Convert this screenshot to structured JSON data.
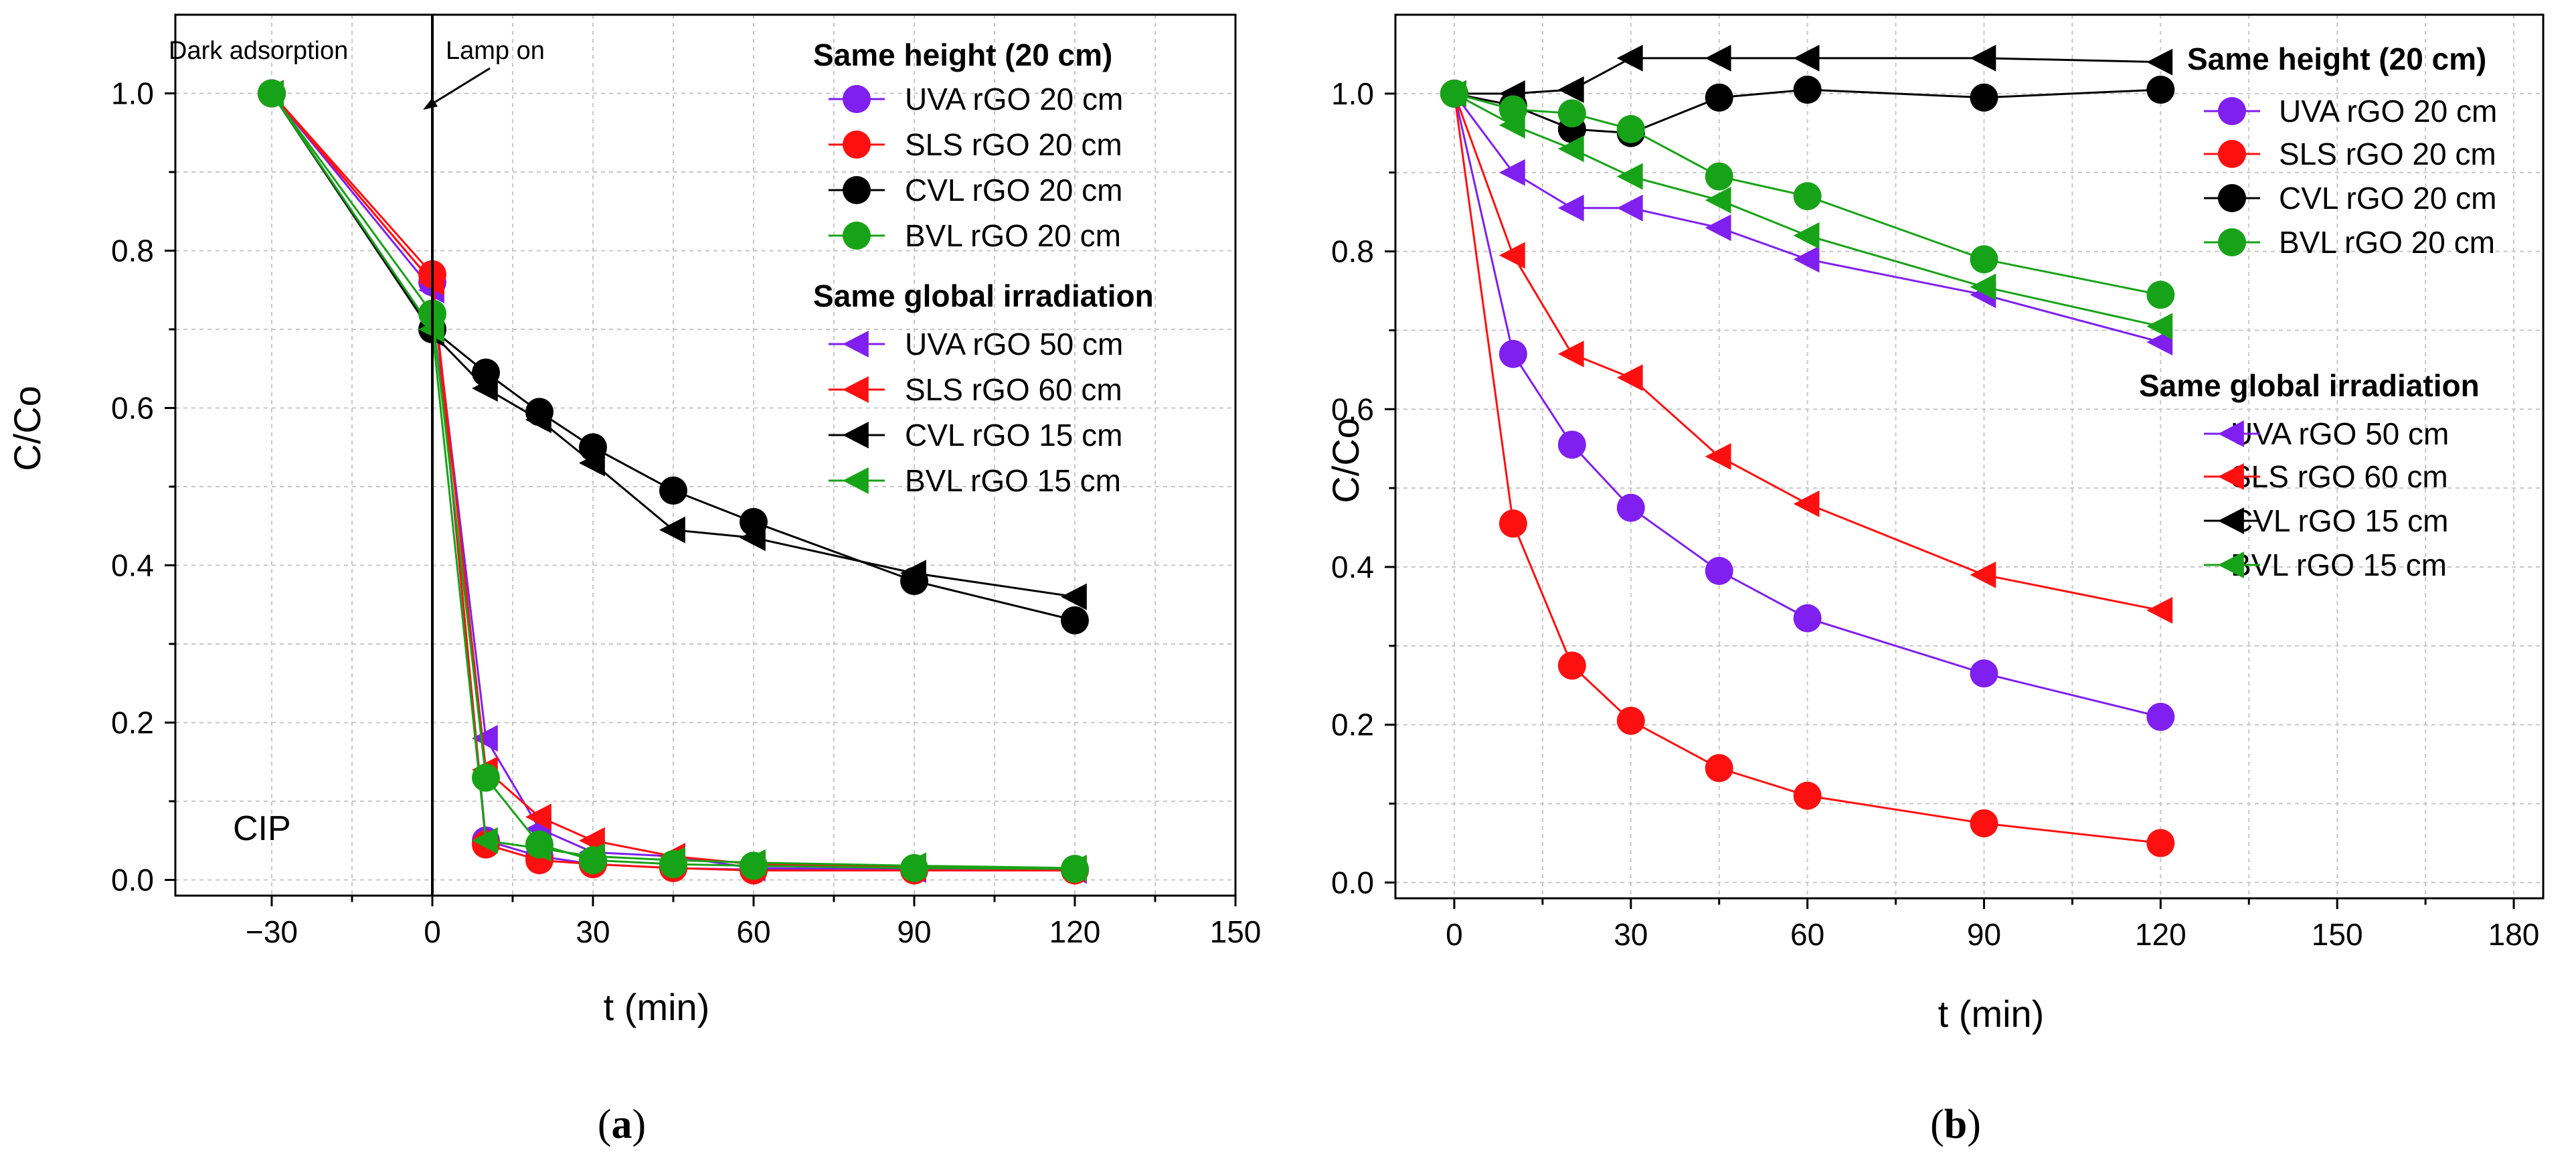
{
  "colors": {
    "UVA": "#7f1ff0",
    "SLS": "#ff1010",
    "CVL": "#000000",
    "BVL": "#17a317",
    "grid": "#c8c8c8"
  },
  "chart_data": [
    {
      "type": "line",
      "panel_label": "a",
      "xlabel": "t (min)",
      "ylabel": "C/Co",
      "xlim": [
        -48,
        150
      ],
      "ylim": [
        -0.02,
        1.1
      ],
      "xticks": [
        -30,
        0,
        30,
        60,
        90,
        120,
        150
      ],
      "xtick_labels": [
        "−30",
        "0",
        "30",
        "60",
        "90",
        "120",
        "150"
      ],
      "yticks": [
        0.0,
        0.2,
        0.4,
        0.6,
        0.8,
        1.0
      ],
      "ytick_labels": [
        "0.0",
        "0.2",
        "0.4",
        "0.6",
        "0.8",
        "1.0"
      ],
      "annotations": {
        "dark": "Dark adsorption",
        "lamp": "Lamp on",
        "compound": "CIP"
      },
      "legend": {
        "group1_title": "Same height (20 cm)",
        "group2_title": "Same global irradiation"
      },
      "series": [
        {
          "name": "UVA rGO 20 cm",
          "group": 1,
          "color": "UVA",
          "marker": "circle",
          "x": [
            -30,
            0,
            10,
            20,
            30,
            45,
            60,
            90,
            120
          ],
          "y": [
            1.0,
            0.76,
            0.05,
            0.03,
            0.02,
            0.015,
            0.013,
            0.013,
            0.013
          ]
        },
        {
          "name": "SLS rGO 20 cm",
          "group": 1,
          "color": "SLS",
          "marker": "circle",
          "x": [
            -30,
            0,
            10,
            20,
            30,
            45,
            60,
            90,
            120
          ],
          "y": [
            1.0,
            0.77,
            0.045,
            0.025,
            0.02,
            0.015,
            0.012,
            0.012,
            0.012
          ]
        },
        {
          "name": "CVL rGO 20 cm",
          "group": 1,
          "color": "CVL",
          "marker": "circle",
          "x": [
            -30,
            0,
            10,
            20,
            30,
            45,
            60,
            90,
            120
          ],
          "y": [
            1.0,
            0.7,
            0.645,
            0.595,
            0.55,
            0.495,
            0.455,
            0.38,
            0.33
          ]
        },
        {
          "name": "BVL rGO 20 cm",
          "group": 1,
          "color": "BVL",
          "marker": "circle",
          "x": [
            -30,
            0,
            10,
            20,
            30,
            45,
            60,
            90,
            120
          ],
          "y": [
            1.0,
            0.72,
            0.13,
            0.045,
            0.025,
            0.02,
            0.018,
            0.015,
            0.014
          ]
        },
        {
          "name": "UVA rGO 50 cm",
          "group": 2,
          "color": "UVA",
          "marker": "triangle-left",
          "x": [
            -30,
            0,
            10,
            20,
            30,
            45,
            60,
            90,
            120
          ],
          "y": [
            1.0,
            0.75,
            0.18,
            0.065,
            0.035,
            0.03,
            0.015,
            0.013,
            0.012
          ]
        },
        {
          "name": "SLS rGO 60 cm",
          "group": 2,
          "color": "SLS",
          "marker": "triangle-left",
          "x": [
            -30,
            0,
            10,
            20,
            30,
            45,
            60,
            90,
            120
          ],
          "y": [
            1.0,
            0.76,
            0.14,
            0.08,
            0.05,
            0.03,
            0.02,
            0.016,
            0.014
          ]
        },
        {
          "name": "CVL rGO 15 cm",
          "group": 2,
          "color": "CVL",
          "marker": "triangle-left",
          "x": [
            -30,
            0,
            10,
            20,
            30,
            45,
            60,
            90,
            120
          ],
          "y": [
            1.0,
            0.695,
            0.625,
            0.585,
            0.53,
            0.445,
            0.435,
            0.39,
            0.36
          ]
        },
        {
          "name": "BVL rGO 15 cm",
          "group": 2,
          "color": "BVL",
          "marker": "triangle-left",
          "x": [
            -30,
            0,
            10,
            20,
            30,
            45,
            60,
            90,
            120
          ],
          "y": [
            1.0,
            0.7,
            0.05,
            0.04,
            0.03,
            0.025,
            0.022,
            0.018,
            0.015
          ]
        }
      ]
    },
    {
      "type": "line",
      "panel_label": "b",
      "xlabel": "t (min)",
      "ylabel": "C/Co",
      "xlim": [
        -10,
        185
      ],
      "ylim": [
        -0.02,
        1.1
      ],
      "xticks": [
        0,
        30,
        60,
        90,
        120,
        150,
        180
      ],
      "xtick_labels": [
        "0",
        "30",
        "60",
        "90",
        "120",
        "150",
        "180"
      ],
      "yticks": [
        0.0,
        0.2,
        0.4,
        0.6,
        0.8,
        1.0
      ],
      "ytick_labels": [
        "0.0",
        "0.2",
        "0.4",
        "0.6",
        "0.8",
        "1.0"
      ],
      "legend": {
        "group1_title": "Same height (20 cm)",
        "group2_title": "Same global irradiation"
      },
      "series": [
        {
          "name": "UVA rGO 20 cm",
          "group": 1,
          "color": "UVA",
          "marker": "circle",
          "x": [
            0,
            10,
            20,
            30,
            45,
            60,
            90,
            120
          ],
          "y": [
            1.0,
            0.67,
            0.555,
            0.475,
            0.395,
            0.335,
            0.265,
            0.21
          ]
        },
        {
          "name": "SLS rGO 20 cm",
          "group": 1,
          "color": "SLS",
          "marker": "circle",
          "x": [
            0,
            10,
            20,
            30,
            45,
            60,
            90,
            120
          ],
          "y": [
            1.0,
            0.455,
            0.275,
            0.205,
            0.145,
            0.11,
            0.075,
            0.05
          ]
        },
        {
          "name": "CVL rGO 20 cm",
          "group": 1,
          "color": "CVL",
          "marker": "circle",
          "x": [
            0,
            10,
            20,
            30,
            45,
            60,
            90,
            120
          ],
          "y": [
            1.0,
            0.985,
            0.955,
            0.95,
            0.995,
            1.005,
            0.995,
            1.005
          ]
        },
        {
          "name": "BVL rGO 20 cm",
          "group": 1,
          "color": "BVL",
          "marker": "circle",
          "x": [
            0,
            10,
            20,
            30,
            45,
            60,
            90,
            120
          ],
          "y": [
            1.0,
            0.98,
            0.975,
            0.955,
            0.895,
            0.87,
            0.79,
            0.745
          ]
        },
        {
          "name": "UVA rGO 50 cm",
          "group": 2,
          "color": "UVA",
          "marker": "triangle-left",
          "x": [
            0,
            10,
            20,
            30,
            45,
            60,
            90,
            120
          ],
          "y": [
            1.0,
            0.9,
            0.855,
            0.855,
            0.83,
            0.79,
            0.745,
            0.685
          ]
        },
        {
          "name": "SLS rGO 60 cm",
          "group": 2,
          "color": "SLS",
          "marker": "triangle-left",
          "x": [
            0,
            10,
            20,
            30,
            45,
            60,
            90,
            120
          ],
          "y": [
            1.0,
            0.795,
            0.67,
            0.64,
            0.54,
            0.48,
            0.39,
            0.345
          ]
        },
        {
          "name": "CVL rGO 15 cm",
          "group": 2,
          "color": "CVL",
          "marker": "triangle-left",
          "x": [
            0,
            10,
            20,
            30,
            45,
            60,
            90,
            120
          ],
          "y": [
            1.0,
            1.0,
            1.005,
            1.045,
            1.045,
            1.045,
            1.045,
            1.04
          ]
        },
        {
          "name": "BVL rGO 15 cm",
          "group": 2,
          "color": "BVL",
          "marker": "triangle-left",
          "x": [
            0,
            10,
            20,
            30,
            45,
            60,
            90,
            120
          ],
          "y": [
            1.0,
            0.96,
            0.93,
            0.895,
            0.865,
            0.82,
            0.755,
            0.705
          ]
        }
      ]
    }
  ]
}
